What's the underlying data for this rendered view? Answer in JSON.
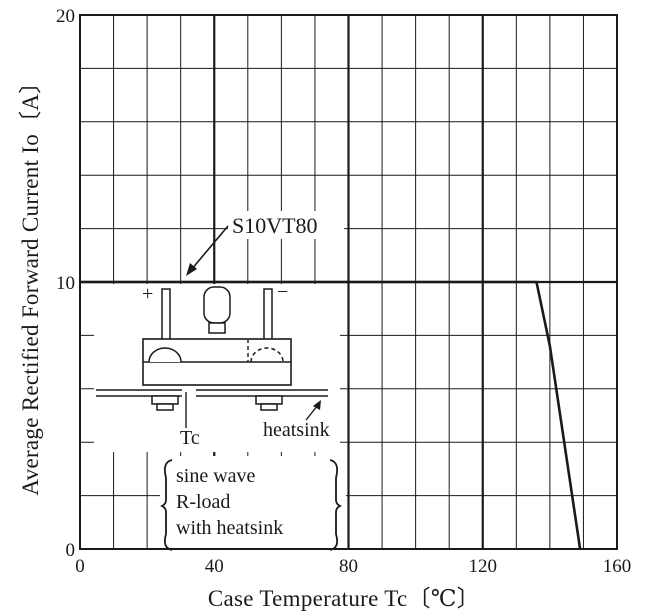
{
  "chart_data": {
    "type": "line",
    "xlabel": "Case Temperature Tc〔℃〕",
    "ylabel": "Average Rectified Forward Current Io〔A〕",
    "xlim": [
      0,
      160
    ],
    "ylim": [
      0,
      20
    ],
    "xticks": [
      "0",
      "40",
      "80",
      "120",
      "160"
    ],
    "yticks": [
      "0",
      "10",
      "20"
    ],
    "grid": true,
    "series": [
      {
        "name": "S10VT80",
        "x": [
          0,
          136,
          140,
          149
        ],
        "y": [
          10,
          10,
          7.6,
          0
        ]
      }
    ],
    "annotations": {
      "tc_label": "Tc",
      "heatsink_label": "heatsink",
      "plus_sign": "+",
      "minus_sign": "−",
      "condition_lines": [
        "sine wave",
        "R-load",
        "with heatsink"
      ]
    }
  }
}
